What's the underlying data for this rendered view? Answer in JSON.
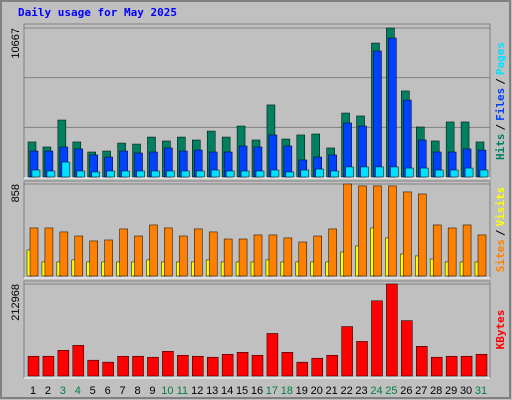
{
  "chart_data": [
    {
      "type": "bar",
      "title": "Daily usage for May 2025",
      "categories": [
        "1",
        "2",
        "3",
        "4",
        "5",
        "6",
        "7",
        "8",
        "9",
        "10",
        "11",
        "12",
        "13",
        "14",
        "15",
        "16",
        "17",
        "18",
        "19",
        "20",
        "21",
        "22",
        "23",
        "24",
        "25",
        "26",
        "27",
        "28",
        "29",
        "30",
        "31"
      ],
      "weekend_indices": [
        2,
        3,
        9,
        10,
        16,
        17,
        23,
        24,
        30
      ],
      "weekend_color": "#008040",
      "legend_separator": "/",
      "ylim": [
        0,
        10667
      ],
      "yticks": [
        10667
      ],
      "grid": true,
      "series": [
        {
          "name": "Hits",
          "color": "#008060",
          "values": [
            2510,
            2150,
            4080,
            2510,
            1790,
            1860,
            2430,
            2360,
            2860,
            2580,
            2860,
            2650,
            3290,
            2860,
            3650,
            2650,
            5160,
            2720,
            3010,
            3080,
            2080,
            4580,
            4370,
            9590,
            10667,
            6160,
            3580,
            2580,
            3940,
            3940,
            2510
          ]
        },
        {
          "name": "Files",
          "color": "#0040ff",
          "values": [
            1860,
            1860,
            2150,
            2010,
            1580,
            1430,
            1860,
            1720,
            1790,
            2080,
            1860,
            1930,
            1790,
            1790,
            2220,
            2150,
            3010,
            2220,
            1220,
            1430,
            1580,
            3870,
            3650,
            9020,
            9950,
            5510,
            2650,
            1790,
            1790,
            2010,
            1930
          ]
        },
        {
          "name": "Pages",
          "color": "#00e0ff",
          "values": [
            500,
            430,
            1070,
            430,
            360,
            430,
            430,
            430,
            430,
            430,
            430,
            430,
            500,
            430,
            430,
            430,
            500,
            360,
            500,
            570,
            430,
            720,
            720,
            720,
            720,
            640,
            640,
            500,
            500,
            640,
            500
          ]
        }
      ]
    },
    {
      "type": "bar",
      "ylim": [
        0,
        858
      ],
      "yticks": [
        858
      ],
      "series": [
        {
          "name": "Visits",
          "color": "#ffff00",
          "values": [
            243,
            131,
            131,
            150,
            131,
            131,
            131,
            131,
            150,
            131,
            131,
            131,
            150,
            131,
            131,
            131,
            150,
            131,
            131,
            131,
            131,
            224,
            280,
            448,
            355,
            205,
            187,
            159,
            131,
            131,
            131
          ]
        },
        {
          "name": "Sites",
          "color": "#ff8000",
          "values": [
            448,
            448,
            411,
            373,
            327,
            336,
            439,
            373,
            476,
            448,
            373,
            439,
            411,
            345,
            345,
            383,
            383,
            355,
            317,
            373,
            439,
            858,
            840,
            840,
            840,
            784,
            765,
            476,
            448,
            476,
            383
          ]
        }
      ]
    },
    {
      "type": "bar",
      "ylim": [
        0,
        212968
      ],
      "yticks": [
        212968
      ],
      "series": [
        {
          "name": "KBytes",
          "color": "#ff0000",
          "values": [
            45800,
            45800,
            59540,
            70990,
            36640,
            32060,
            45800,
            45800,
            43510,
            57250,
            48090,
            45800,
            43510,
            50380,
            54960,
            48090,
            98470,
            54960,
            32060,
            41220,
            48090,
            114500,
            80150,
            174040,
            212968,
            128240,
            68700,
            43510,
            45800,
            45800,
            50380
          ]
        }
      ]
    }
  ]
}
